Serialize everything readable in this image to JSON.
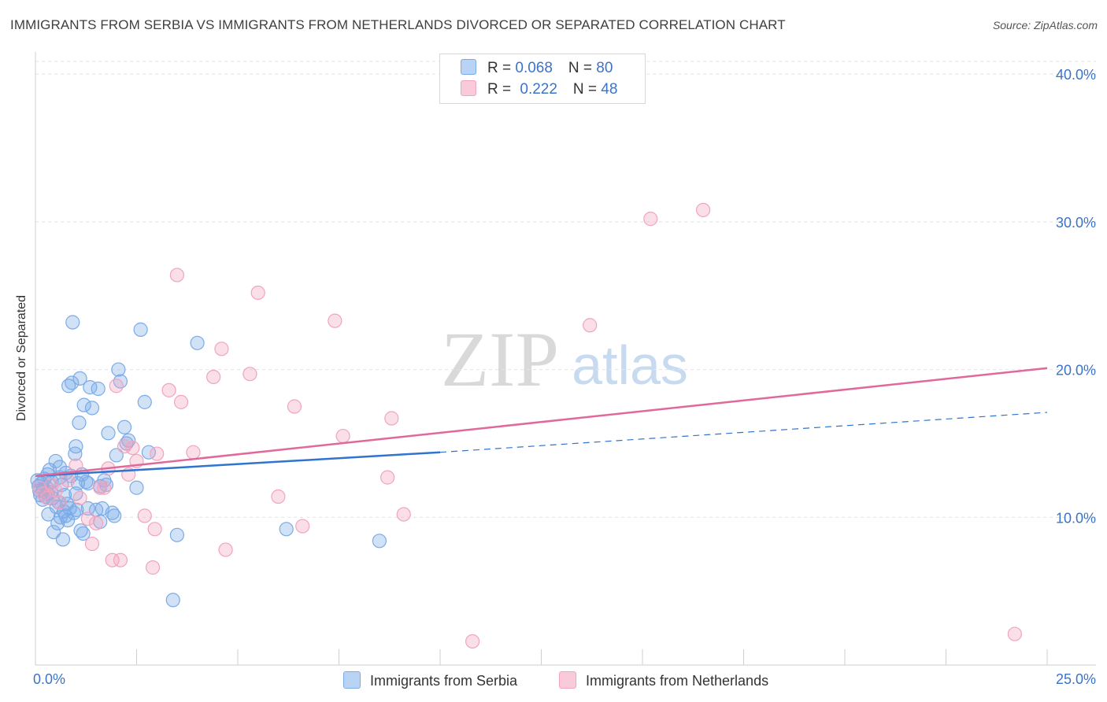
{
  "title": "IMMIGRANTS FROM SERBIA VS IMMIGRANTS FROM NETHERLANDS DIVORCED OR SEPARATED CORRELATION CHART",
  "source": "Source: ZipAtlas.com",
  "watermark": {
    "zip": "ZIP",
    "atlas": "atlas"
  },
  "legend": {
    "serbia": {
      "r_label": "R = ",
      "r_value": "0.068",
      "n_label": "N = ",
      "n_value": "80"
    },
    "netherlands": {
      "r_label": "R = ",
      "r_value": "0.222",
      "n_label": "N = ",
      "n_value": "48"
    }
  },
  "colors": {
    "serbia": "#7aabe8",
    "serbia_line": "#2f74cf",
    "netherlands": "#f2a3be",
    "netherlands_line": "#e0699a",
    "axis_text": "#3b73c8"
  },
  "chart_data": {
    "type": "scatter",
    "title": "IMMIGRANTS FROM SERBIA VS IMMIGRANTS FROM NETHERLANDS DIVORCED OR SEPARATED CORRELATION CHART",
    "xlabel": "",
    "ylabel": "Divorced or Separated",
    "xlim": [
      0,
      25
    ],
    "ylim": [
      0,
      41.5
    ],
    "x_tick_labels": [
      "0.0%",
      "25.0%"
    ],
    "y_ticks": [
      10,
      20,
      30,
      40
    ],
    "y_tick_labels": [
      "10.0%",
      "20.0%",
      "30.0%",
      "40.0%"
    ],
    "grid": true,
    "legend_position": "top-center",
    "series": [
      {
        "name": "Immigrants from Serbia",
        "trend": {
          "x": [
            0,
            10
          ],
          "y": [
            12.8,
            14.4
          ],
          "dashed_to": [
            25,
            17.1
          ]
        },
        "points": [
          [
            0.05,
            12.5
          ],
          [
            0.08,
            12.1
          ],
          [
            0.1,
            11.8
          ],
          [
            0.12,
            11.5
          ],
          [
            0.15,
            12.3
          ],
          [
            0.18,
            11.2
          ],
          [
            0.2,
            11.9
          ],
          [
            0.22,
            12.6
          ],
          [
            0.25,
            11.4
          ],
          [
            0.28,
            12.0
          ],
          [
            0.3,
            11.6
          ],
          [
            0.32,
            10.2
          ],
          [
            0.35,
            13.2
          ],
          [
            0.38,
            11.7
          ],
          [
            0.4,
            12.4
          ],
          [
            0.42,
            11.3
          ],
          [
            0.45,
            9.0
          ],
          [
            0.5,
            13.8
          ],
          [
            0.52,
            10.7
          ],
          [
            0.55,
            9.6
          ],
          [
            0.58,
            11.0
          ],
          [
            0.6,
            13.4
          ],
          [
            0.62,
            10.0
          ],
          [
            0.65,
            12.2
          ],
          [
            0.68,
            8.5
          ],
          [
            0.7,
            10.4
          ],
          [
            0.72,
            11.5
          ],
          [
            0.75,
            13.0
          ],
          [
            0.78,
            10.9
          ],
          [
            0.8,
            9.8
          ],
          [
            0.82,
            18.9
          ],
          [
            0.85,
            10.6
          ],
          [
            0.88,
            12.8
          ],
          [
            0.9,
            19.1
          ],
          [
            0.92,
            23.2
          ],
          [
            0.95,
            10.3
          ],
          [
            0.98,
            14.3
          ],
          [
            1.0,
            14.8
          ],
          [
            1.02,
            10.5
          ],
          [
            1.05,
            12.3
          ],
          [
            1.08,
            16.4
          ],
          [
            1.1,
            19.4
          ],
          [
            1.12,
            9.1
          ],
          [
            1.15,
            12.9
          ],
          [
            1.18,
            8.9
          ],
          [
            1.2,
            17.6
          ],
          [
            1.25,
            12.4
          ],
          [
            1.3,
            12.3
          ],
          [
            1.35,
            18.8
          ],
          [
            1.4,
            17.4
          ],
          [
            1.5,
            10.5
          ],
          [
            1.55,
            18.7
          ],
          [
            1.6,
            9.7
          ],
          [
            1.65,
            10.6
          ],
          [
            1.7,
            12.5
          ],
          [
            1.75,
            12.2
          ],
          [
            1.8,
            15.7
          ],
          [
            1.9,
            10.3
          ],
          [
            1.95,
            10.1
          ],
          [
            2.0,
            14.2
          ],
          [
            2.05,
            20.0
          ],
          [
            2.1,
            19.2
          ],
          [
            2.2,
            16.1
          ],
          [
            2.25,
            15.0
          ],
          [
            2.5,
            12.0
          ],
          [
            2.6,
            22.7
          ],
          [
            2.7,
            17.8
          ],
          [
            2.8,
            14.4
          ],
          [
            3.4,
            4.4
          ],
          [
            3.5,
            8.8
          ],
          [
            4.0,
            21.8
          ],
          [
            6.2,
            9.2
          ],
          [
            8.5,
            8.4
          ],
          [
            0.3,
            12.9
          ],
          [
            0.6,
            12.7
          ],
          [
            0.75,
            10.1
          ],
          [
            1.0,
            11.6
          ],
          [
            1.3,
            10.6
          ],
          [
            1.6,
            12.1
          ],
          [
            2.3,
            15.2
          ]
        ]
      },
      {
        "name": "Immigrants from Netherlands",
        "trend": {
          "x": [
            0,
            25
          ],
          "y": [
            12.8,
            20.1
          ]
        },
        "points": [
          [
            0.1,
            12.0
          ],
          [
            0.2,
            11.6
          ],
          [
            0.3,
            11.3
          ],
          [
            0.4,
            12.2
          ],
          [
            0.5,
            11.8
          ],
          [
            0.6,
            11.0
          ],
          [
            0.8,
            12.5
          ],
          [
            1.0,
            13.5
          ],
          [
            1.1,
            11.3
          ],
          [
            1.3,
            9.9
          ],
          [
            1.4,
            8.2
          ],
          [
            1.5,
            9.6
          ],
          [
            1.6,
            12.0
          ],
          [
            1.7,
            12.0
          ],
          [
            1.8,
            13.3
          ],
          [
            1.9,
            7.1
          ],
          [
            2.0,
            18.9
          ],
          [
            2.1,
            7.1
          ],
          [
            2.2,
            14.8
          ],
          [
            2.3,
            12.9
          ],
          [
            2.4,
            14.7
          ],
          [
            2.5,
            13.8
          ],
          [
            2.7,
            10.1
          ],
          [
            2.9,
            6.6
          ],
          [
            2.95,
            9.2
          ],
          [
            3.0,
            14.3
          ],
          [
            3.3,
            18.6
          ],
          [
            3.5,
            26.4
          ],
          [
            3.6,
            17.8
          ],
          [
            3.9,
            14.4
          ],
          [
            4.4,
            19.5
          ],
          [
            4.6,
            21.4
          ],
          [
            4.7,
            7.8
          ],
          [
            5.3,
            19.7
          ],
          [
            5.5,
            25.2
          ],
          [
            6.0,
            11.4
          ],
          [
            6.4,
            17.5
          ],
          [
            6.6,
            9.4
          ],
          [
            7.4,
            23.3
          ],
          [
            7.6,
            15.5
          ],
          [
            8.7,
            12.7
          ],
          [
            8.8,
            16.7
          ],
          [
            9.1,
            10.2
          ],
          [
            10.8,
            1.6
          ],
          [
            13.7,
            23.0
          ],
          [
            15.2,
            30.2
          ],
          [
            16.5,
            30.8
          ],
          [
            24.2,
            2.1
          ]
        ]
      }
    ]
  }
}
